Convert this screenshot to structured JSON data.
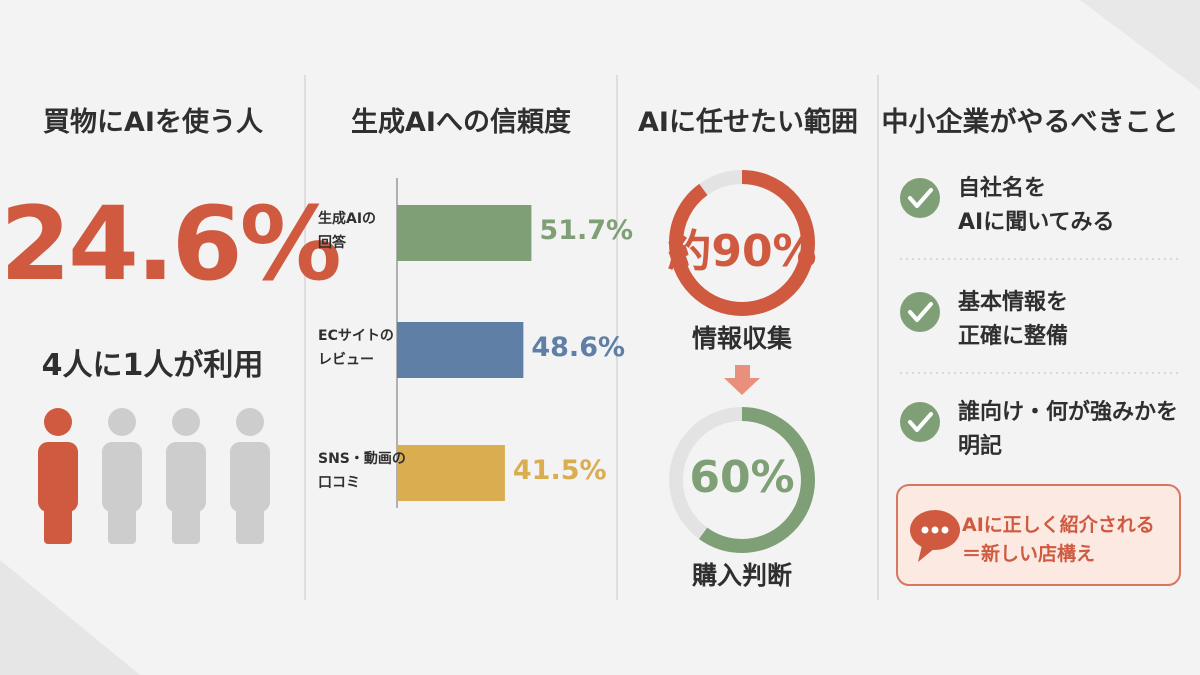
{
  "panels": {
    "usage": {
      "title": "買物にAIを使う人",
      "headline": "24.6%",
      "caption": "4人に1人が利用"
    },
    "trust": {
      "type": "bar",
      "title": "生成AIへの信頼度",
      "categories": [
        "生成AIの\n回答",
        "ECサイトの\nレビュー",
        "SNS・動画の\n口コミ"
      ],
      "values": [
        51.7,
        48.6,
        41.5
      ],
      "value_labels": [
        "51.7%",
        "48.6%",
        "41.5%"
      ],
      "colors": [
        "#7f9f76",
        "#5f7fa6",
        "#d9ad50"
      ]
    },
    "delegation": {
      "type": "donut",
      "title": "AIに任せたい範囲",
      "values": [
        90,
        60
      ],
      "value_labels": [
        "約90%",
        "60%"
      ],
      "captions": [
        "情報収集",
        "購入判断"
      ],
      "colors": [
        "#cf5a40",
        "#7f9f76"
      ]
    },
    "todo": {
      "title": "中小企業がやるべきこと",
      "items": [
        "自社名を\nAIに聞いてみる",
        "基本情報を\n正確に整備",
        "誰向け・何が強みかを\n明記"
      ],
      "callout": "AIに正しく紹介される\n＝新しい店構え"
    }
  }
}
